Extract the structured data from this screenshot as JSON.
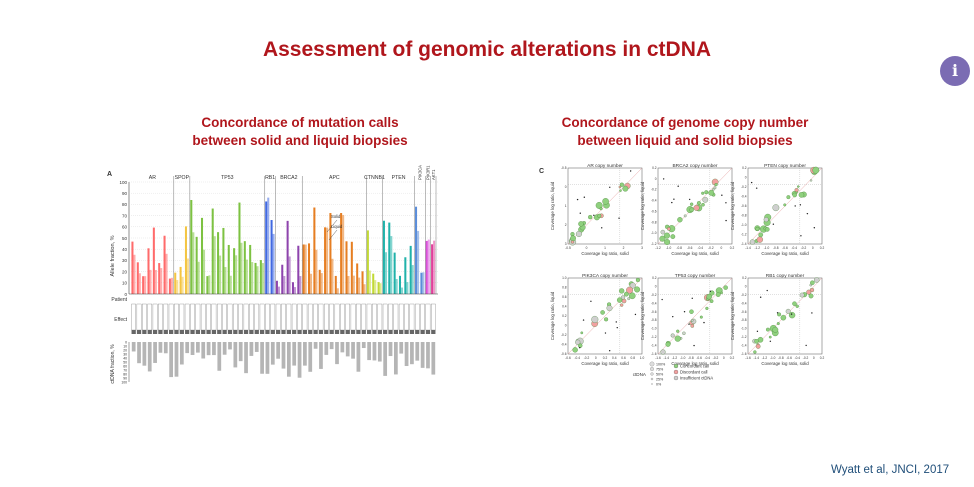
{
  "slide": {
    "title": "Assessment of genomic alterations in ctDNA",
    "info_icon": "i",
    "citation": "Wyatt et al, JNCI, 2017"
  },
  "left_panel": {
    "heading_line1": "Concordance of mutation calls",
    "heading_line2": "between solid and liquid biopsies",
    "figure_label": "A",
    "genes": [
      "AR",
      "SPOP",
      "TP53",
      "RB1",
      "BRCA2",
      "APC",
      "CTNNB1",
      "PTEN",
      "PIK3CA",
      "PIK3R1",
      "AKT1"
    ],
    "y_label": "Allele fraction, %",
    "y_ticks": [
      "100",
      "90",
      "80",
      "70",
      "60",
      "50",
      "40",
      "30",
      "20",
      "10",
      "0"
    ],
    "row_label_patient": "Patient",
    "row_label_effect": "Effect",
    "bottom_y_label": "ctDNA fraction, %",
    "bottom_ticks": [
      "0",
      "10",
      "20",
      "30",
      "40",
      "50",
      "60",
      "70",
      "80",
      "90",
      "100"
    ],
    "legend_solid": "Solid",
    "legend_liquid": "Liquid"
  },
  "right_panel": {
    "heading_line1": "Concordance of genome copy number",
    "heading_line2": "between liquid and solid biopsies",
    "figure_label": "C",
    "x_label": "Coverage log ratio, solid",
    "y_label": "Coverage log ratio, liquid",
    "plots": [
      {
        "title": "AR copy number",
        "xt": [
          "-0.5",
          "0",
          "1",
          "2",
          "3"
        ],
        "yt": [
          "-0.5",
          "0",
          "1",
          "2",
          "3"
        ]
      },
      {
        "title": "BRCA2 copy number",
        "xt": [
          "-1.2",
          "-1.0",
          "-0.8",
          "-0.6",
          "-0.4",
          "-0.2",
          "0",
          "0.2"
        ],
        "yt": [
          "0.2",
          "0",
          "-0.2",
          "-0.4",
          "-0.6",
          "-0.8",
          "-1.0",
          "-1.2"
        ]
      },
      {
        "title": "PTEN copy number",
        "xt": [
          "-1.4",
          "-1.2",
          "-1.0",
          "-0.8",
          "-0.6",
          "-0.4",
          "-0.2",
          "0",
          "0.2"
        ],
        "yt": [
          "0.2",
          "0",
          "-0.2",
          "-0.4",
          "-0.6",
          "-0.8",
          "-1.0",
          "-1.2",
          "-1.4"
        ]
      },
      {
        "title": "PIK3CA copy number",
        "xt": [
          "-0.6",
          "-0.4",
          "-0.2",
          "0",
          "0.2",
          "0.4",
          "0.6",
          "0.8",
          "1.0"
        ],
        "yt": [
          "1.0",
          "0.8",
          "0.6",
          "0.4",
          "0.2",
          "0",
          "-0.2",
          "-0.4",
          "-0.6"
        ]
      },
      {
        "title": "TP53 copy number",
        "xt": [
          "-1.6",
          "-1.4",
          "-1.2",
          "-1.0",
          "-0.8",
          "-0.6",
          "-0.4",
          "-0.2",
          "0",
          "0.2"
        ],
        "yt": [
          "0.2",
          "0",
          "-0.2",
          "-0.4",
          "-0.6",
          "-0.8",
          "-1.0",
          "-1.2",
          "-1.4",
          "-1.6"
        ]
      },
      {
        "title": "RB1 copy number",
        "xt": [
          "-1.6",
          "-1.4",
          "-1.2",
          "-1.0",
          "-0.8",
          "-0.6",
          "-0.4",
          "-0.2",
          "0",
          "0.2"
        ],
        "yt": [
          "0.2",
          "0",
          "-0.2",
          "-0.4",
          "-0.6",
          "-0.8",
          "-1.0",
          "-1.2",
          "-1.4",
          "-1.6"
        ]
      }
    ],
    "legend_title": "ctDNA",
    "legend_sizes": [
      "100%",
      "75%",
      "50%",
      "25%",
      "0%"
    ],
    "legend_items": [
      "Concordant call",
      "Discordant call",
      "Insufficient ctDNA"
    ]
  },
  "colors": {
    "title": "#b0161c",
    "info_button": "#7b6cb3",
    "citation": "#1f4e79",
    "gene_groups": [
      "#ff6b6b",
      "#f4c542",
      "#7dc242",
      "#4169e1",
      "#8e44ad",
      "#e67e22",
      "#c2d935",
      "#20b2aa",
      "#5b8dd9",
      "#d94fd9",
      "#e0409a"
    ],
    "concordant": "#8fd07e",
    "discordant": "#f2a0a0",
    "insufficient": "#cfcfcf",
    "ctdna_bars": "#b5b5b5"
  }
}
